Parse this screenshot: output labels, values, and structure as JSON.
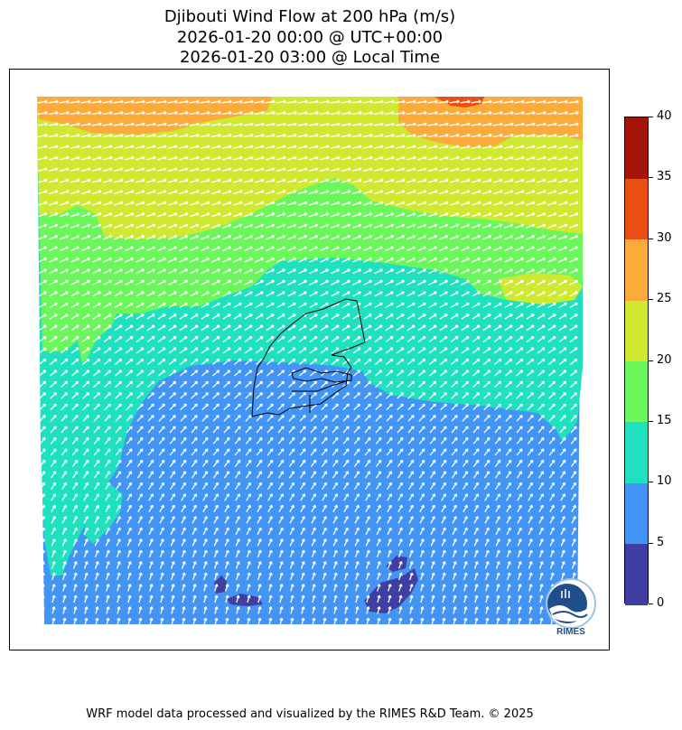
{
  "title": {
    "line1": "Djibouti Wind Flow at 200 hPa (m/s)",
    "line2": "2026-01-20 00:00 @ UTC+00:00",
    "line3": "2026-01-20 03:00 @ Local Time"
  },
  "colorbar": {
    "levels": [
      0,
      5,
      10,
      15,
      20,
      25,
      30,
      35,
      40
    ],
    "tick_labels": [
      "0",
      "5",
      "10",
      "15",
      "20",
      "25",
      "30",
      "35",
      "40"
    ],
    "colors": [
      "#3f3fa3",
      "#4294f5",
      "#1fe0bf",
      "#6bf75c",
      "#cfe830",
      "#fbab3a",
      "#e94e12",
      "#a3150b"
    ]
  },
  "map": {
    "field_colors": {
      "band_5_10": "#4294f5",
      "band_10_15": "#1fe0bf",
      "band_15_20": "#6bf75c",
      "band_20_25": "#cfe830",
      "band_25_30": "#fbab3a",
      "band_30_35": "#e94e12",
      "band_0_5": "#3f3fa3"
    },
    "arrow_color": "#ffffff",
    "border_color": "#000000"
  },
  "logo": {
    "text": "RIMES"
  },
  "footer": "WRF model data processed and visualized by the RIMES R&D Team. © 2025"
}
